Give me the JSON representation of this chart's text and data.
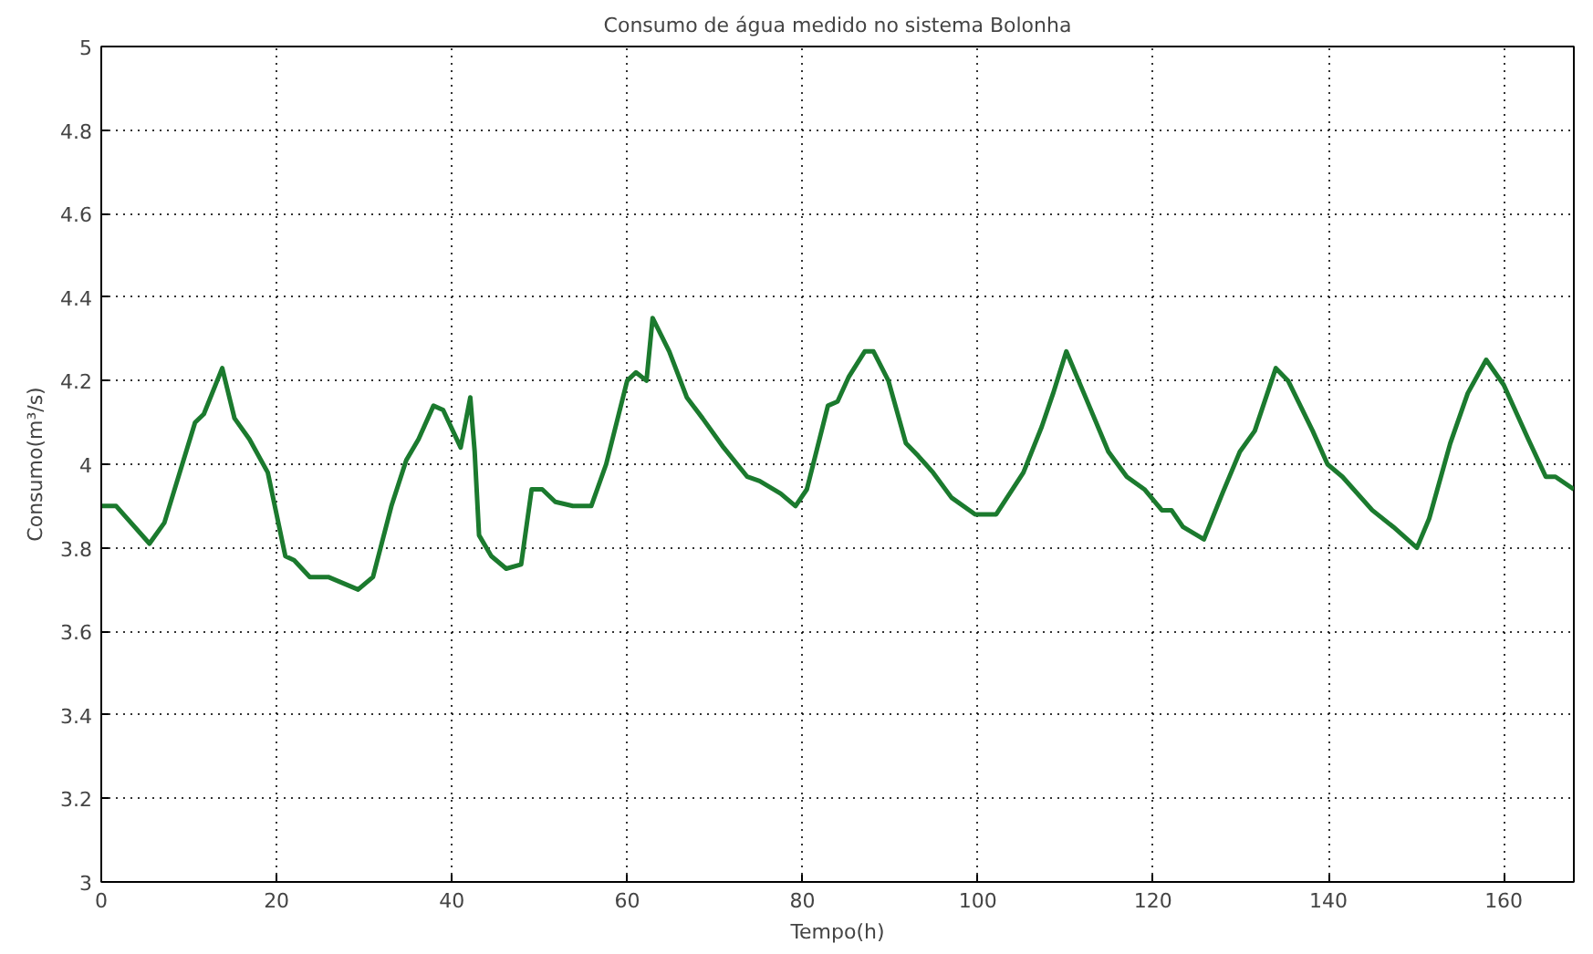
{
  "chart_data": {
    "type": "line",
    "title": "Consumo de água medido no sistema Bolonha",
    "xlabel": "Tempo(h)",
    "ylabel": "Consumo(m³/s)",
    "xlim": [
      0,
      168
    ],
    "ylim": [
      3,
      5
    ],
    "xticks": [
      0,
      20,
      40,
      60,
      80,
      100,
      120,
      140,
      160
    ],
    "yticks": [
      3,
      3.2,
      3.4,
      3.6,
      3.8,
      4,
      4.2,
      4.4,
      4.6,
      4.8,
      5
    ],
    "grid": true,
    "line_style": "solid",
    "series": [
      {
        "color": "#1b7a2e",
        "x": [
          0,
          1.7,
          5.5,
          7.2,
          10.7,
          11.7,
          13.8,
          15.2,
          16.9,
          19,
          21,
          22,
          23.8,
          25.9,
          29.3,
          31,
          33.1,
          34.8,
          36.2,
          37.9,
          39,
          41,
          42.1,
          42.6,
          43.1,
          44.5,
          46.2,
          47.9,
          49.1,
          50.3,
          51.8,
          53.8,
          55.9,
          57.6,
          60,
          61,
          62.2,
          62.9,
          64.8,
          66.8,
          68.6,
          71,
          73.7,
          75.1,
          77.5,
          79.2,
          80.5,
          82.9,
          84,
          85.3,
          87.1,
          88.1,
          89.8,
          91.8,
          93.2,
          94.9,
          97,
          99.7,
          102.1,
          105.2,
          107.3,
          108.6,
          110.1,
          112.1,
          114.9,
          117,
          119,
          121,
          122.1,
          123.4,
          125.8,
          127.9,
          129.9,
          131.6,
          134,
          135.4,
          138.2,
          139.9,
          141.6,
          145,
          147.4,
          150.1,
          151.5,
          153.9,
          155.9,
          158,
          160,
          162.8,
          164.8,
          165.9,
          168
        ],
        "values": [
          3.9,
          3.9,
          3.81,
          3.86,
          4.1,
          4.12,
          4.23,
          4.11,
          4.06,
          3.98,
          3.78,
          3.77,
          3.73,
          3.73,
          3.7,
          3.73,
          3.9,
          4.01,
          4.06,
          4.14,
          4.13,
          4.04,
          4.16,
          4.03,
          3.83,
          3.78,
          3.75,
          3.76,
          3.94,
          3.94,
          3.91,
          3.9,
          3.9,
          4.0,
          4.2,
          4.22,
          4.2,
          4.35,
          4.27,
          4.16,
          4.11,
          4.04,
          3.97,
          3.96,
          3.93,
          3.9,
          3.94,
          4.14,
          4.15,
          4.21,
          4.27,
          4.27,
          4.2,
          4.05,
          4.02,
          3.98,
          3.92,
          3.88,
          3.88,
          3.98,
          4.09,
          4.17,
          4.27,
          4.17,
          4.03,
          3.97,
          3.94,
          3.89,
          3.89,
          3.85,
          3.82,
          3.93,
          4.03,
          4.08,
          4.23,
          4.2,
          4.08,
          4.0,
          3.97,
          3.89,
          3.85,
          3.8,
          3.87,
          4.05,
          4.17,
          4.25,
          4.19,
          4.06,
          3.97,
          3.97,
          3.94
        ]
      }
    ]
  }
}
